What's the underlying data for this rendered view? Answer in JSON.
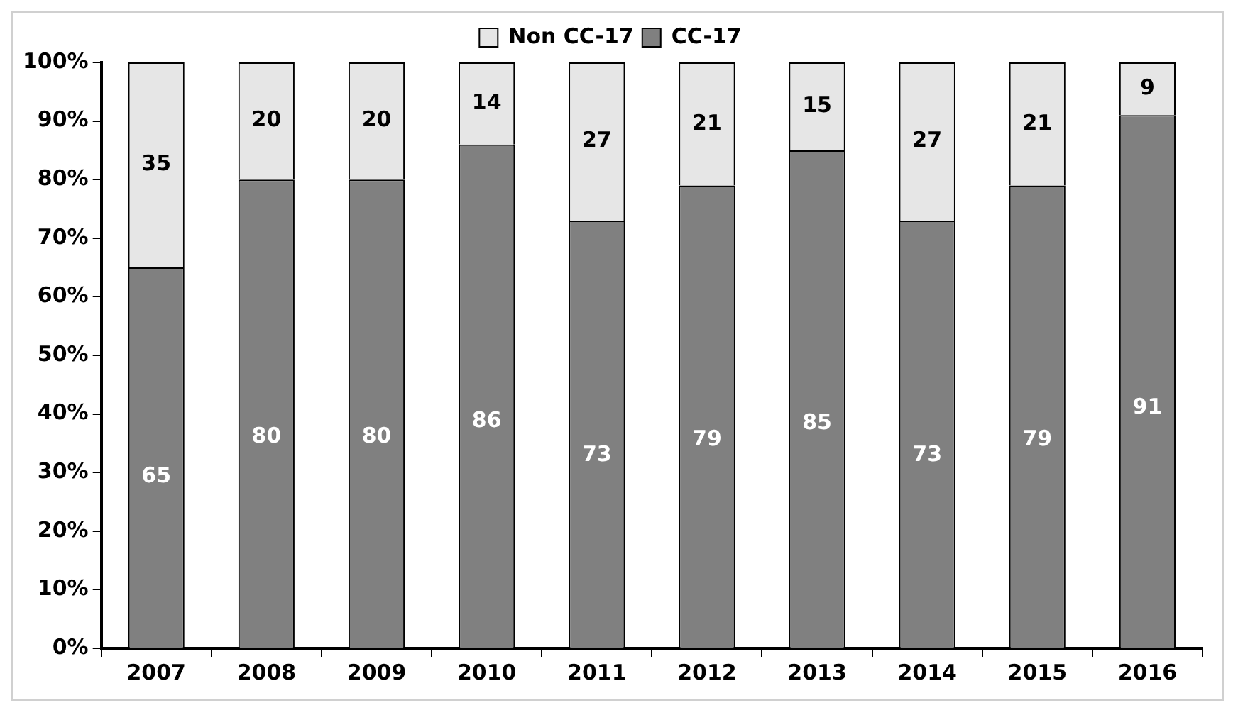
{
  "chart_data": {
    "type": "bar",
    "stacked": true,
    "categories": [
      "2007",
      "2008",
      "2009",
      "2010",
      "2011",
      "2012",
      "2013",
      "2014",
      "2015",
      "2016"
    ],
    "series": [
      {
        "name": "CC-17",
        "color": "#808080",
        "values": [
          65,
          80,
          80,
          86,
          73,
          79,
          85,
          73,
          79,
          91
        ]
      },
      {
        "name": "Non CC-17",
        "color": "#e6e6e6",
        "values": [
          35,
          20,
          20,
          14,
          27,
          21,
          15,
          27,
          21,
          9
        ]
      }
    ],
    "ylim": [
      0,
      100
    ],
    "yticks": [
      {
        "value": 0,
        "label": "0%"
      },
      {
        "value": 10,
        "label": "10%"
      },
      {
        "value": 20,
        "label": "20%"
      },
      {
        "value": 30,
        "label": "30%"
      },
      {
        "value": 40,
        "label": "40%"
      },
      {
        "value": 50,
        "label": "50%"
      },
      {
        "value": 60,
        "label": "60%"
      },
      {
        "value": 70,
        "label": "70%"
      },
      {
        "value": 80,
        "label": "80%"
      },
      {
        "value": 90,
        "label": "90%"
      },
      {
        "value": 100,
        "label": "100%"
      }
    ],
    "grid": false,
    "legend": "top",
    "data_labels": true
  }
}
